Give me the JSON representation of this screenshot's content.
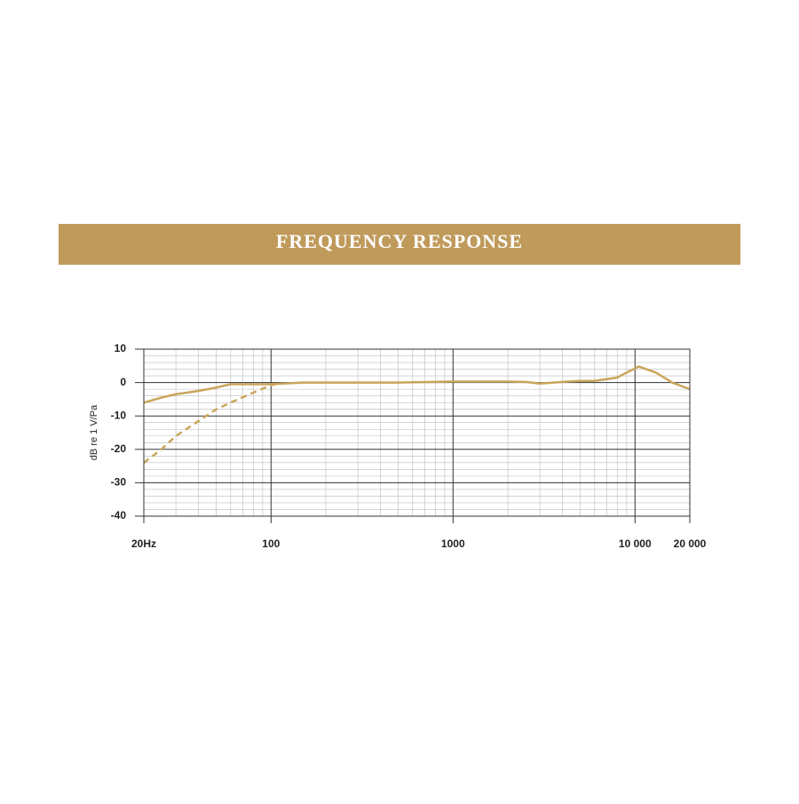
{
  "chart_data": {
    "type": "line",
    "title": "FREQUENCY RESPONSE",
    "y_label": "dB re 1 V/Pa",
    "x_scale": "log",
    "xlim": [
      20,
      20000
    ],
    "xticks": [
      {
        "value": 20,
        "label": "20Hz"
      },
      100,
      1000,
      {
        "value": 10000,
        "label": "10 000"
      },
      {
        "value": 20000,
        "label": "20 000"
      }
    ],
    "xminorticks": [
      30,
      40,
      50,
      60,
      70,
      80,
      90,
      200,
      300,
      400,
      500,
      600,
      700,
      800,
      900,
      2000,
      3000,
      4000,
      5000,
      6000,
      7000,
      8000,
      9000
    ],
    "ylim": [
      -40,
      10
    ],
    "yticks": [
      10,
      0,
      -10,
      -20,
      -30,
      -40
    ],
    "yminorticks": [
      8,
      6,
      4,
      2,
      -2,
      -4,
      -6,
      -8,
      -12,
      -14,
      -16,
      -18,
      -22,
      -24,
      -26,
      -28,
      -32,
      -34,
      -36,
      -38
    ],
    "grid": true,
    "series": [
      {
        "color": "#c9a55a",
        "style": "solid",
        "x": [
          20,
          25,
          30,
          40,
          50,
          60,
          80,
          100,
          150,
          200,
          300,
          500,
          1000,
          2000,
          2500,
          3000,
          4000,
          5000,
          6000,
          8000,
          9000,
          10500,
          13000,
          16000,
          20000
        ],
        "values": [
          -6,
          -4.5,
          -3.5,
          -2.5,
          -1.5,
          -0.5,
          -0.5,
          -0.5,
          0,
          0,
          0,
          0,
          0.3,
          0.3,
          0.2,
          -0.3,
          0.2,
          0.5,
          0.5,
          1.5,
          3,
          4.8,
          3,
          0,
          -2
        ]
      },
      {
        "color": "#c9a55a",
        "style": "dashed",
        "x": [
          20,
          25,
          30,
          40,
          50,
          60,
          80,
          100,
          110
        ],
        "values": [
          -24,
          -20,
          -16,
          -11.5,
          -8,
          -6,
          -3,
          -0.8,
          -0.3
        ]
      }
    ]
  }
}
